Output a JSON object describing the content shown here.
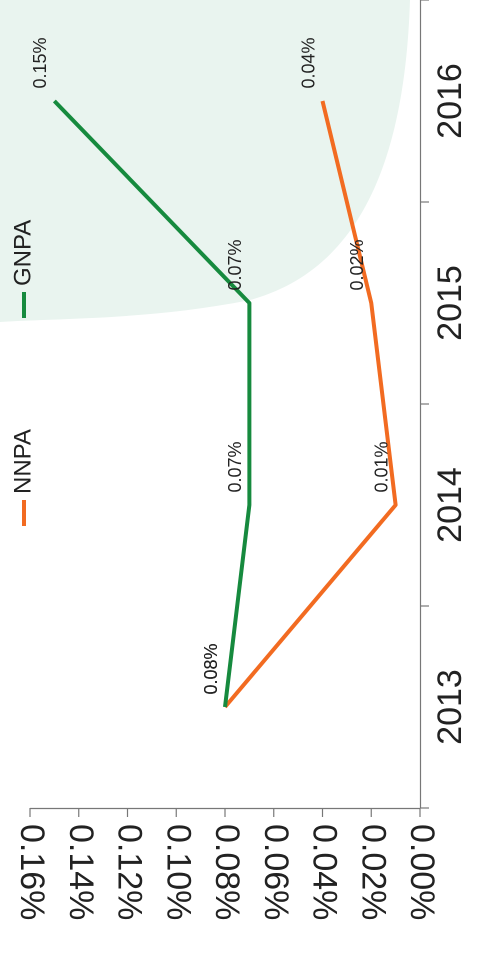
{
  "chart_data": {
    "type": "line",
    "categories": [
      "2013",
      "2014",
      "2015",
      "2016"
    ],
    "series": [
      {
        "name": "NNPA",
        "values": [
          0.08,
          0.01,
          0.02,
          0.04
        ],
        "labels": [
          "0.08%",
          "0.01%",
          "0.02%",
          "0.04%"
        ],
        "color": "#f26b21"
      },
      {
        "name": "GNPA",
        "values": [
          0.08,
          0.07,
          0.07,
          0.15
        ],
        "labels": [
          "0.08%",
          "0.07%",
          "0.07%",
          "0.15%"
        ],
        "color": "#168a3e"
      }
    ],
    "y_ticks": [
      "0.00%",
      "0.02%",
      "0.04%",
      "0.06%",
      "0.08%",
      "0.10%",
      "0.12%",
      "0.14%",
      "0.16%"
    ],
    "y_tick_values": [
      0,
      0.02,
      0.04,
      0.06,
      0.08,
      0.1,
      0.12,
      0.14,
      0.16
    ],
    "ylim": [
      0,
      0.16
    ],
    "legend_position": "top",
    "grid": false,
    "orientation": "rotated 90° clockwise",
    "background_shape_color": "#e9f4ef"
  }
}
